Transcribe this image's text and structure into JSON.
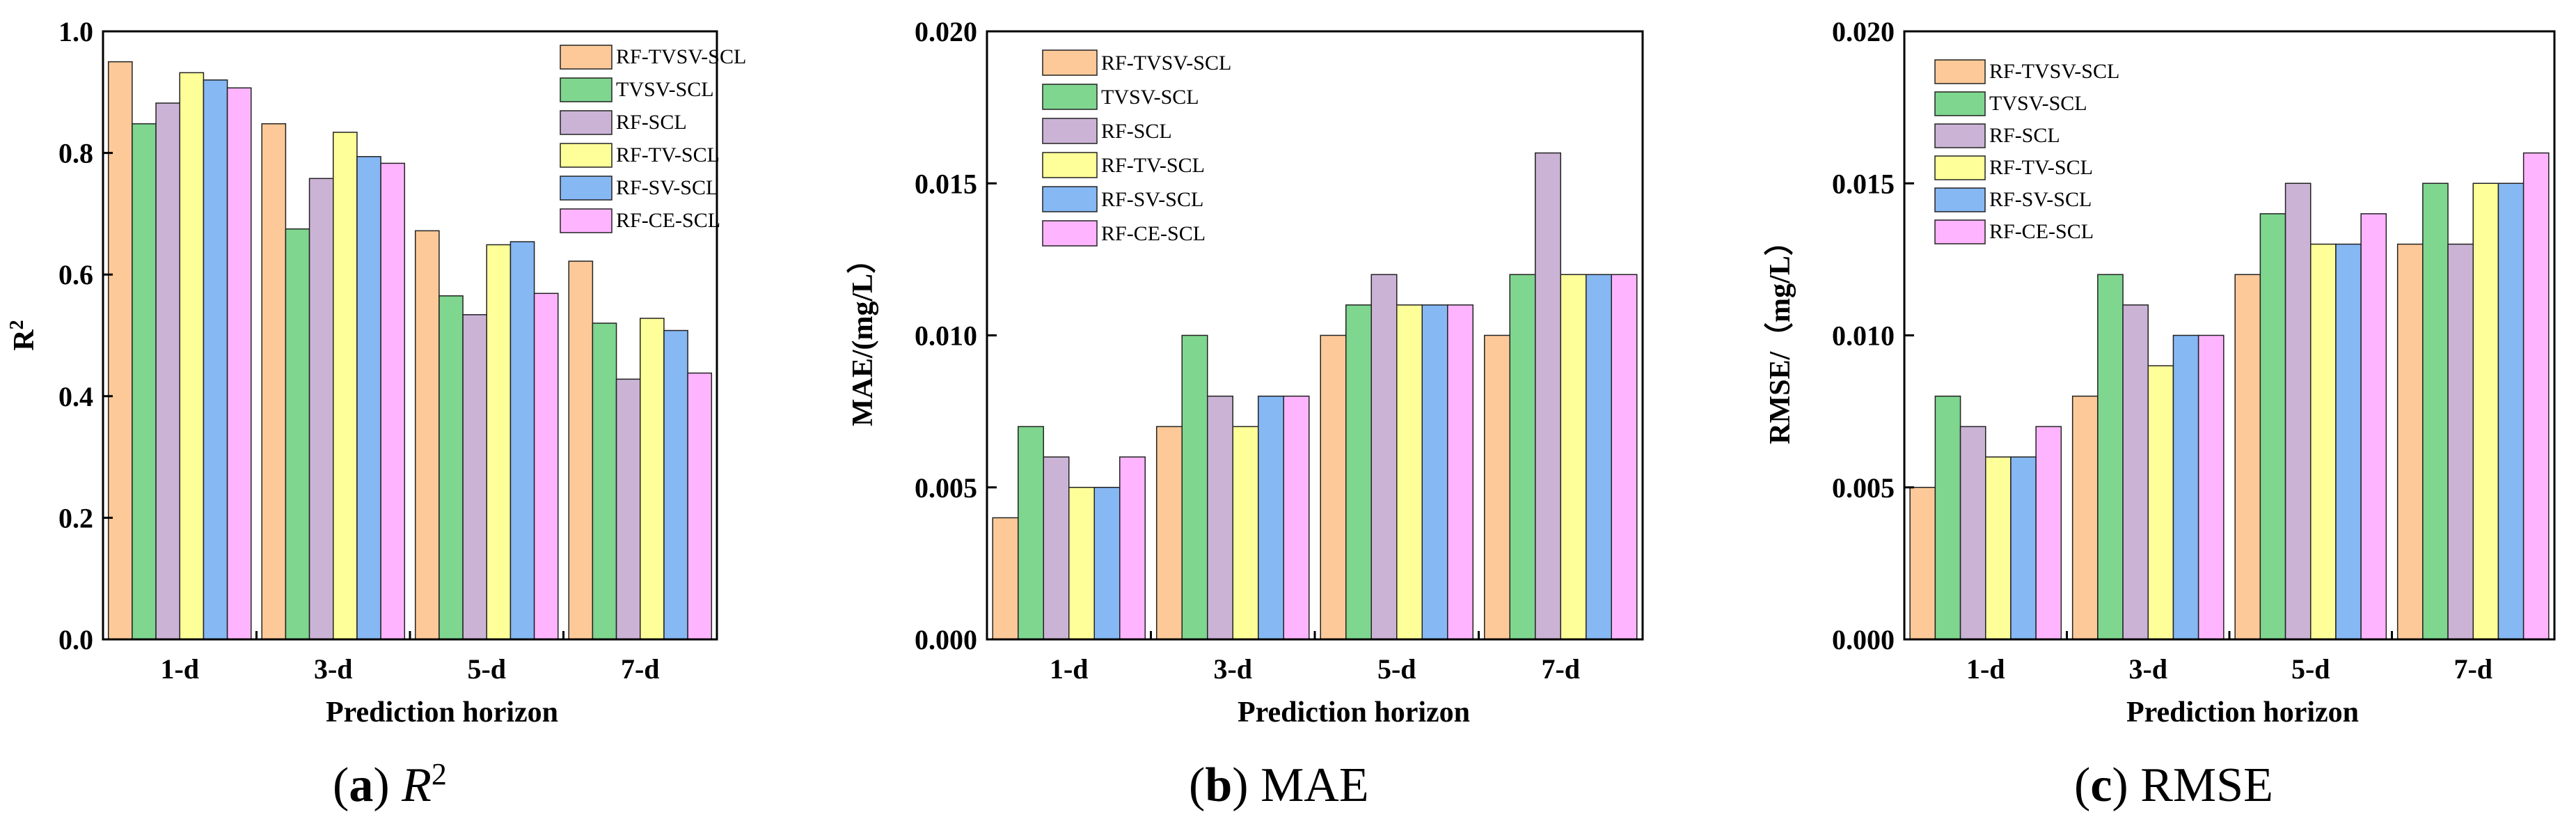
{
  "colors": {
    "RF-TVSV-SCL": "#fdc998",
    "TVSV-SCL": "#7fd68f",
    "RF-SCL": "#cbb3d6",
    "RF-TV-SCL": "#ffff99",
    "RF-SV-SCL": "#86b8f4",
    "RF-CE-SCL": "#ffb4ff"
  },
  "chart_data": [
    {
      "type": "bar",
      "ylabel": "R",
      "ylabel_superscript": "2",
      "xlabel": "Prediction horizon",
      "categories": [
        "1-d",
        "3-d",
        "5-d",
        "7-d"
      ],
      "ylim": [
        0.0,
        1.0
      ],
      "yticks": [
        "0.0",
        "0.2",
        "0.4",
        "0.6",
        "0.8",
        "1.0"
      ],
      "legend_position": "top-right",
      "series": [
        {
          "name": "RF-TVSV-SCL",
          "values": [
            0.95,
            0.848,
            0.672,
            0.622
          ]
        },
        {
          "name": "TVSV-SCL",
          "values": [
            0.848,
            0.675,
            0.565,
            0.52
          ]
        },
        {
          "name": "RF-SCL",
          "values": [
            0.882,
            0.758,
            0.534,
            0.428
          ]
        },
        {
          "name": "RF-TV-SCL",
          "values": [
            0.932,
            0.834,
            0.649,
            0.528
          ]
        },
        {
          "name": "RF-SV-SCL",
          "values": [
            0.92,
            0.794,
            0.654,
            0.508
          ]
        },
        {
          "name": "RF-CE-SCL",
          "values": [
            0.907,
            0.783,
            0.569,
            0.438
          ]
        }
      ],
      "caption": {
        "letter": "a",
        "text": "R",
        "superscript": "2"
      }
    },
    {
      "type": "bar",
      "ylabel": "MAE/(mg/L）",
      "xlabel": "Prediction horizon",
      "categories": [
        "1-d",
        "3-d",
        "5-d",
        "7-d"
      ],
      "ylim": [
        0.0,
        0.02
      ],
      "yticks": [
        "0.000",
        "0.005",
        "0.010",
        "0.015",
        "0.020"
      ],
      "legend_position": "top-left",
      "series": [
        {
          "name": "RF-TVSV-SCL",
          "values": [
            0.004,
            0.007,
            0.01,
            0.01
          ]
        },
        {
          "name": "TVSV-SCL",
          "values": [
            0.007,
            0.01,
            0.011,
            0.012
          ]
        },
        {
          "name": "RF-SCL",
          "values": [
            0.006,
            0.008,
            0.012,
            0.016
          ]
        },
        {
          "name": "RF-TV-SCL",
          "values": [
            0.005,
            0.007,
            0.011,
            0.012
          ]
        },
        {
          "name": "RF-SV-SCL",
          "values": [
            0.005,
            0.008,
            0.011,
            0.012
          ]
        },
        {
          "name": "RF-CE-SCL",
          "values": [
            0.006,
            0.008,
            0.011,
            0.012
          ]
        }
      ],
      "caption": {
        "letter": "b",
        "text": "MAE"
      }
    },
    {
      "type": "bar",
      "ylabel": "RMSE/（mg/L）",
      "xlabel": "Prediction horizon",
      "categories": [
        "1-d",
        "3-d",
        "5-d",
        "7-d"
      ],
      "ylim": [
        0.0,
        0.02
      ],
      "yticks": [
        "0.000",
        "0.005",
        "0.010",
        "0.015",
        "0.020"
      ],
      "legend_position": "top-left",
      "series": [
        {
          "name": "RF-TVSV-SCL",
          "values": [
            0.005,
            0.008,
            0.012,
            0.013
          ]
        },
        {
          "name": "TVSV-SCL",
          "values": [
            0.008,
            0.012,
            0.014,
            0.015
          ]
        },
        {
          "name": "RF-SCL",
          "values": [
            0.007,
            0.011,
            0.015,
            0.013
          ]
        },
        {
          "name": "RF-TV-SCL",
          "values": [
            0.006,
            0.009,
            0.013,
            0.015
          ]
        },
        {
          "name": "RF-SV-SCL",
          "values": [
            0.006,
            0.01,
            0.013,
            0.015
          ]
        },
        {
          "name": "RF-CE-SCL",
          "values": [
            0.007,
            0.01,
            0.014,
            0.016
          ]
        }
      ],
      "caption": {
        "letter": "c",
        "text": "RMSE"
      }
    }
  ]
}
